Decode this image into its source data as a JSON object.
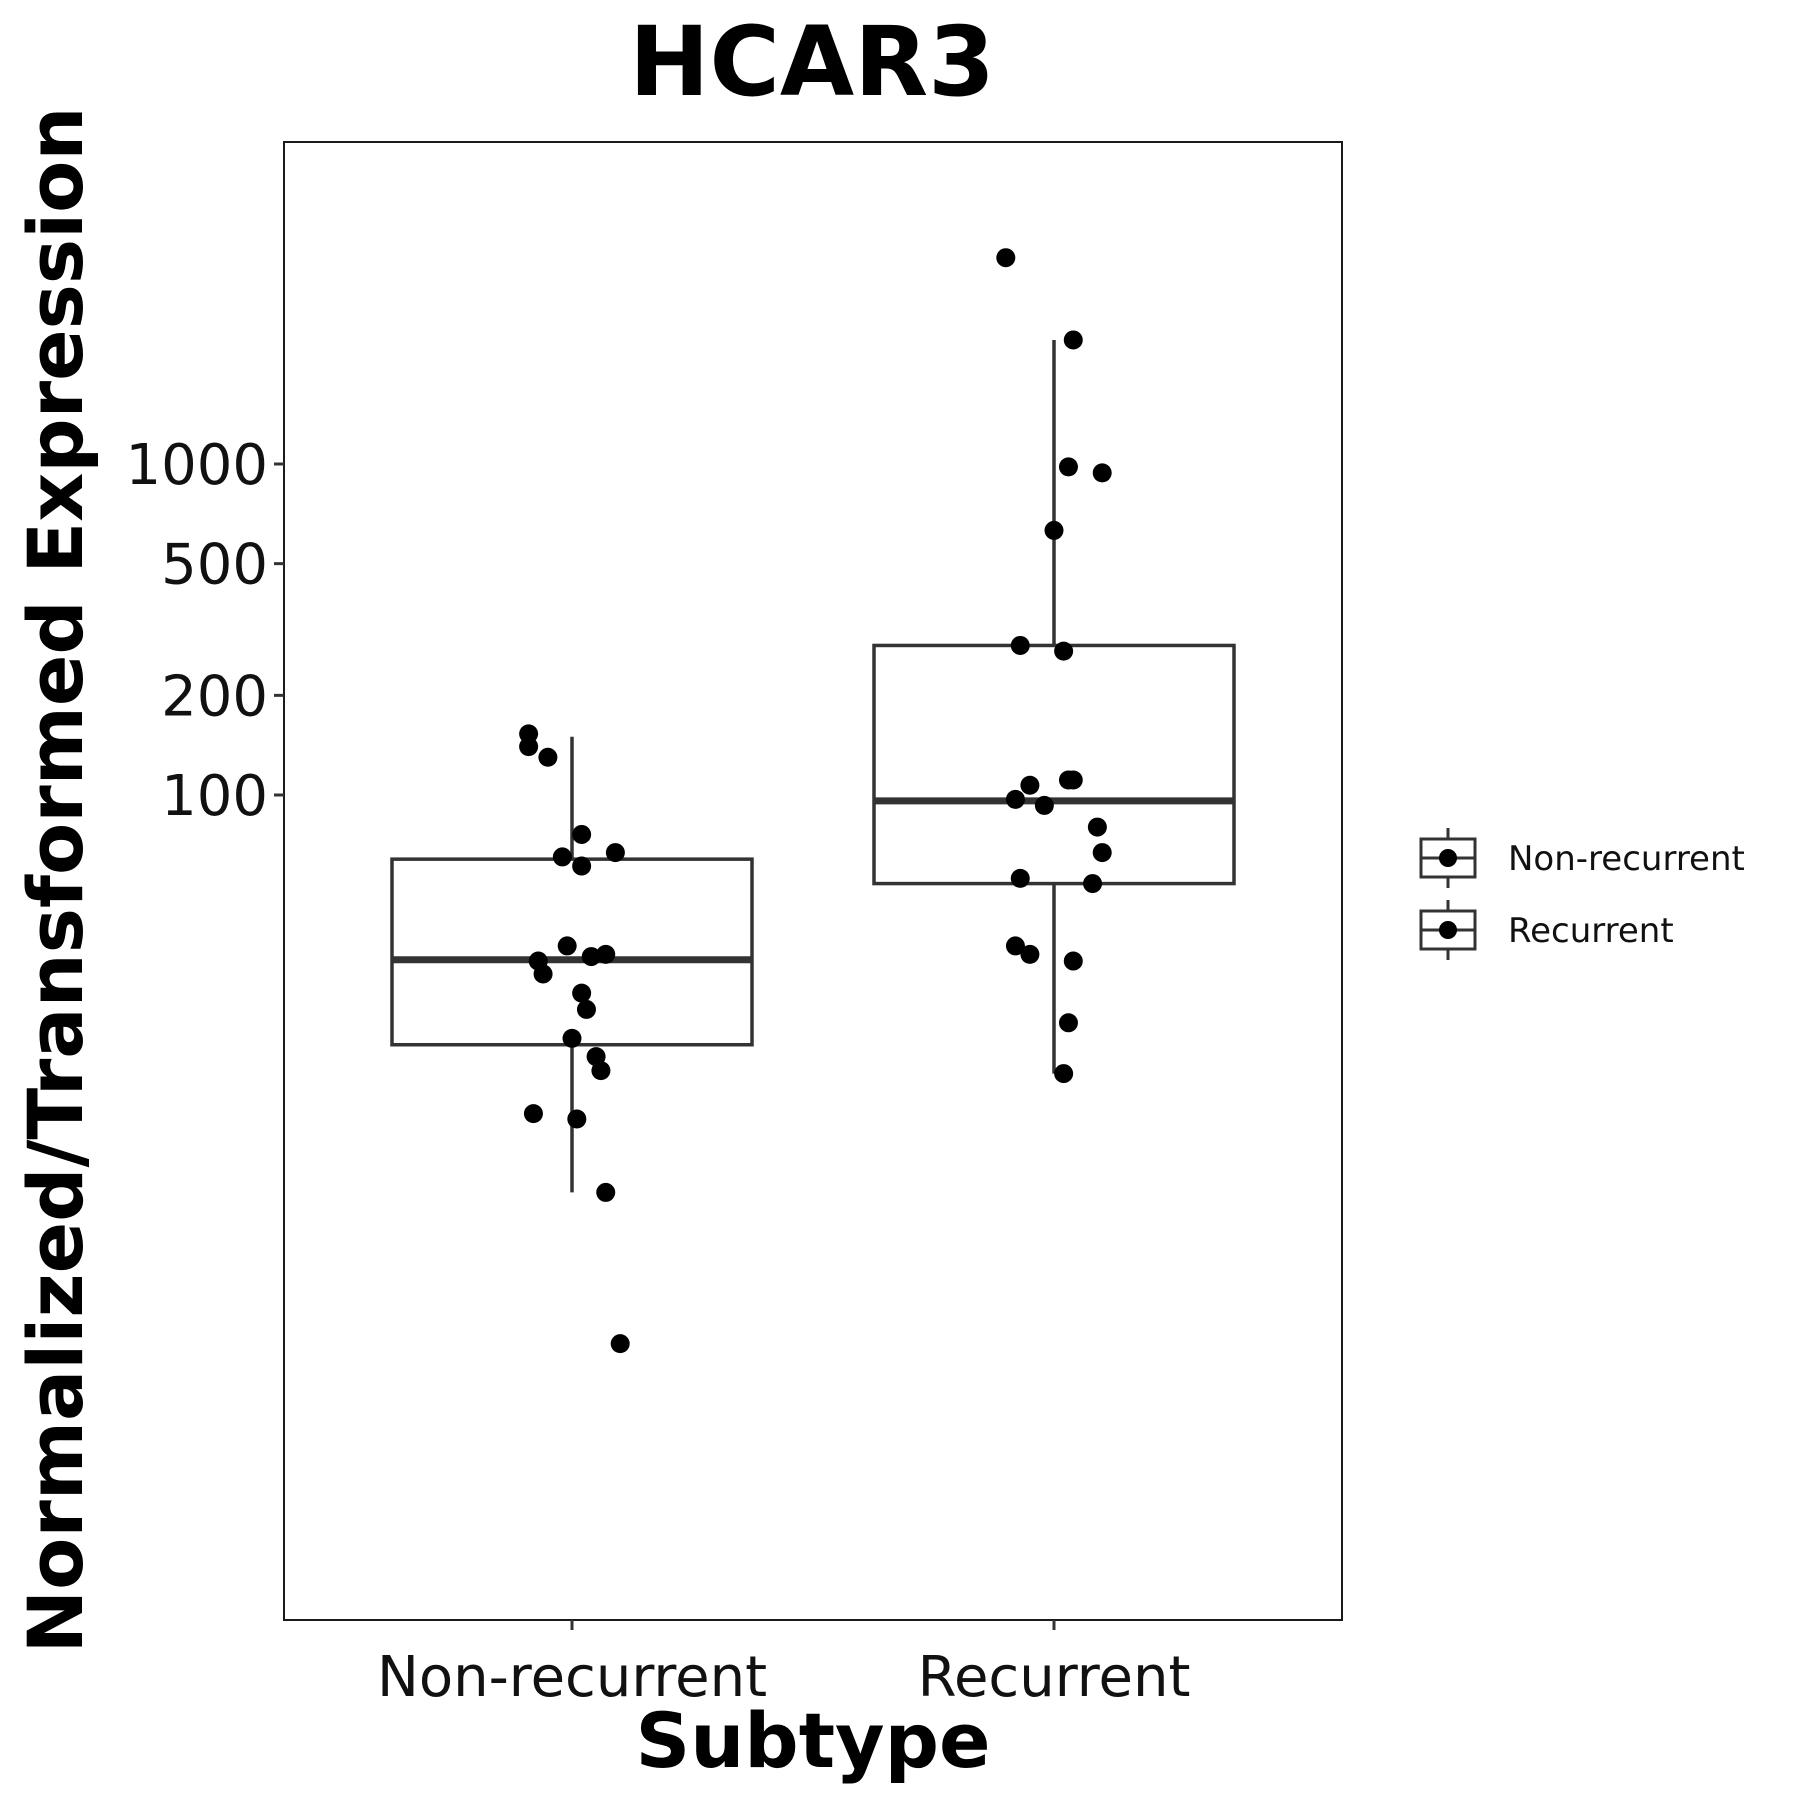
{
  "chart_data": {
    "type": "box",
    "title": "HCAR3",
    "xlabel": "Subtype",
    "ylabel": "Normalized/Transformed Expression",
    "yscale": "log10",
    "ylim": [
      1.7,
      15000
    ],
    "yticks": [
      100,
      200,
      500,
      1000
    ],
    "ytick_labels": [
      "100",
      "200",
      "500",
      "1000"
    ],
    "grid": false,
    "legend_position": "right",
    "categories": [
      "Non-recurrent",
      "Recurrent"
    ],
    "series": [
      {
        "name": "Non-recurrent",
        "box": {
          "whisker_low": 6.3,
          "q1": 17.6,
          "median": 31.8,
          "q3": 64,
          "whisker_high": 150
        },
        "points": [
          {
            "jitter": -0.09,
            "value": 153
          },
          {
            "jitter": -0.09,
            "value": 140
          },
          {
            "jitter": -0.05,
            "value": 130
          },
          {
            "jitter": 0.02,
            "value": 76
          },
          {
            "jitter": 0.09,
            "value": 67
          },
          {
            "jitter": -0.02,
            "value": 65
          },
          {
            "jitter": 0.02,
            "value": 61
          },
          {
            "jitter": -0.01,
            "value": 35
          },
          {
            "jitter": 0.04,
            "value": 32.5
          },
          {
            "jitter": 0.07,
            "value": 33
          },
          {
            "jitter": -0.07,
            "value": 31.5
          },
          {
            "jitter": -0.06,
            "value": 28.8
          },
          {
            "jitter": 0.02,
            "value": 25.2
          },
          {
            "jitter": 0.03,
            "value": 22.5
          },
          {
            "jitter": 0.0,
            "value": 18.4
          },
          {
            "jitter": 0.05,
            "value": 16.2
          },
          {
            "jitter": 0.06,
            "value": 14.7
          },
          {
            "jitter": -0.08,
            "value": 10.9
          },
          {
            "jitter": 0.01,
            "value": 10.5
          },
          {
            "jitter": 0.07,
            "value": 6.3
          },
          {
            "jitter": 0.1,
            "value": 2.2
          }
        ]
      },
      {
        "name": "Recurrent",
        "box": {
          "whisker_low": 14.4,
          "q1": 54,
          "median": 96,
          "q3": 283,
          "whisker_high": 2370
        },
        "points": [
          {
            "jitter": -0.1,
            "value": 4200
          },
          {
            "jitter": 0.04,
            "value": 2370
          },
          {
            "jitter": 0.03,
            "value": 980
          },
          {
            "jitter": 0.1,
            "value": 940
          },
          {
            "jitter": 0.0,
            "value": 630
          },
          {
            "jitter": -0.07,
            "value": 283
          },
          {
            "jitter": 0.02,
            "value": 272
          },
          {
            "jitter": 0.03,
            "value": 111
          },
          {
            "jitter": 0.04,
            "value": 111
          },
          {
            "jitter": -0.05,
            "value": 107
          },
          {
            "jitter": -0.08,
            "value": 97
          },
          {
            "jitter": -0.02,
            "value": 93
          },
          {
            "jitter": 0.09,
            "value": 80
          },
          {
            "jitter": 0.1,
            "value": 67
          },
          {
            "jitter": -0.07,
            "value": 56
          },
          {
            "jitter": 0.08,
            "value": 54
          },
          {
            "jitter": -0.08,
            "value": 35
          },
          {
            "jitter": -0.05,
            "value": 33
          },
          {
            "jitter": 0.04,
            "value": 31.5
          },
          {
            "jitter": 0.03,
            "value": 20.5
          },
          {
            "jitter": 0.02,
            "value": 14.4
          }
        ]
      }
    ]
  },
  "legend": {
    "items": [
      "Non-recurrent",
      "Recurrent"
    ]
  },
  "colors": {
    "box_stroke": "#333333",
    "point_fill": "#000000",
    "panel_border": "#1a1a1a",
    "background": "#ffffff"
  }
}
